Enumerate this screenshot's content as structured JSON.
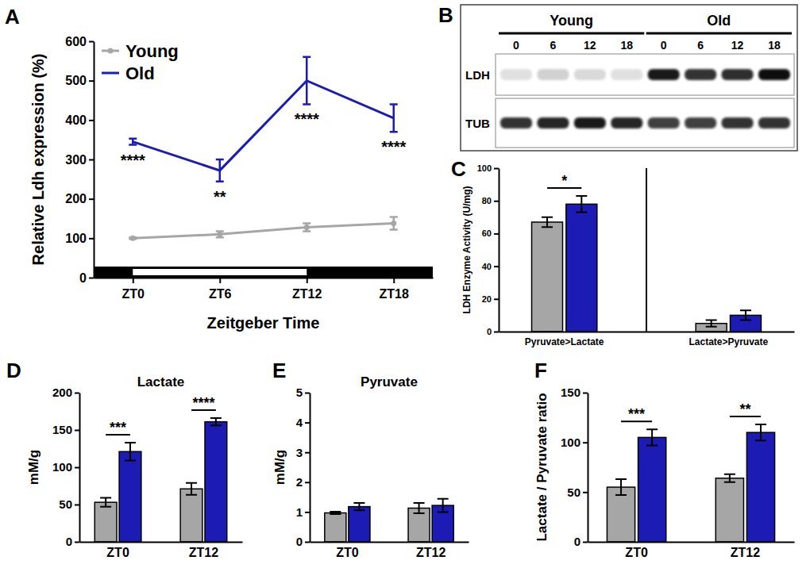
{
  "chart_data": [
    {
      "panel_label": "A",
      "type": "line",
      "x_label": "Zeitgeber Time",
      "y_label": "Relative Ldh expression (%)",
      "categories": [
        "ZT0",
        "ZT6",
        "ZT12",
        "ZT18"
      ],
      "series": [
        {
          "name": "Young",
          "color": "#a6a6a6",
          "marker": "circle",
          "values": [
            100,
            110,
            128,
            138
          ],
          "errors": [
            2,
            8,
            10,
            16
          ]
        },
        {
          "name": "Old",
          "color": "#1c1cb4",
          "values": [
            345,
            272,
            500,
            405
          ],
          "errors": [
            8,
            28,
            60,
            35
          ]
        }
      ],
      "ylim": [
        0,
        600
      ],
      "yticks": [
        0,
        100,
        200,
        300,
        400,
        500,
        600
      ],
      "legend": "upper left",
      "light_phase": [
        "ZT0",
        "ZT12"
      ],
      "annotations": [
        {
          "category": "ZT0",
          "text": "****"
        },
        {
          "category": "ZT6",
          "text": "**"
        },
        {
          "category": "ZT12",
          "text": "****"
        },
        {
          "category": "ZT18",
          "text": "****"
        }
      ]
    },
    {
      "panel_label": "B",
      "type": "blot",
      "groups": [
        {
          "name": "Young",
          "lanes": [
            "0",
            "6",
            "12",
            "18"
          ]
        },
        {
          "name": "Old",
          "lanes": [
            "0",
            "6",
            "12",
            "18"
          ]
        }
      ],
      "rows": [
        {
          "name": "LDH",
          "intensities": [
            0.12,
            0.18,
            0.15,
            0.12,
            0.9,
            0.8,
            0.82,
            0.95
          ]
        },
        {
          "name": "TUB",
          "intensities": [
            0.8,
            0.85,
            0.9,
            0.85,
            0.75,
            0.75,
            0.8,
            0.8
          ]
        }
      ]
    },
    {
      "panel_label": "C",
      "type": "bar",
      "y_label": "LDH Enzyme Activity (U/mg)",
      "categories": [
        "Pyruvate>Lactate",
        "Lactate>Pyruvate"
      ],
      "series": [
        {
          "color": "#a6a6a6",
          "values": [
            67,
            5
          ],
          "errors": [
            3,
            2
          ]
        },
        {
          "color": "#1c1cb4",
          "values": [
            78,
            10
          ],
          "errors": [
            5,
            3
          ]
        }
      ],
      "ylim": [
        0,
        100
      ],
      "yticks": [
        0,
        20,
        40,
        60,
        80,
        100
      ],
      "annotations": [
        {
          "category": "Pyruvate>Lactate",
          "text": "*"
        }
      ]
    },
    {
      "panel_label": "D",
      "type": "bar",
      "title": "Lactate",
      "y_label": "mM/g",
      "categories": [
        "ZT0",
        "ZT12"
      ],
      "series": [
        {
          "color": "#a6a6a6",
          "values": [
            53,
            71
          ],
          "errors": [
            6,
            8
          ]
        },
        {
          "color": "#1c1cb4",
          "values": [
            121,
            161
          ],
          "errors": [
            12,
            5
          ]
        }
      ],
      "ylim": [
        0,
        200
      ],
      "yticks": [
        0,
        50,
        100,
        150,
        200
      ],
      "annotations": [
        {
          "category": "ZT0",
          "text": "***"
        },
        {
          "category": "ZT12",
          "text": "****"
        }
      ]
    },
    {
      "panel_label": "E",
      "type": "bar",
      "title": "Pyruvate",
      "y_label": "mM/g",
      "categories": [
        "ZT0",
        "ZT12"
      ],
      "series": [
        {
          "color": "#a6a6a6",
          "values": [
            0.97,
            1.13
          ],
          "errors": [
            0.04,
            0.17
          ]
        },
        {
          "color": "#1c1cb4",
          "values": [
            1.18,
            1.22
          ],
          "errors": [
            0.12,
            0.22
          ]
        }
      ],
      "ylim": [
        0,
        5
      ],
      "yticks": [
        0,
        1,
        2,
        3,
        4,
        5
      ]
    },
    {
      "panel_label": "F",
      "type": "bar",
      "y_label": "Lactate / Pyruvate ratio",
      "categories": [
        "ZT0",
        "ZT12"
      ],
      "series": [
        {
          "color": "#a6a6a6",
          "values": [
            55,
            64
          ],
          "errors": [
            8,
            4
          ]
        },
        {
          "color": "#1c1cb4",
          "values": [
            105,
            110
          ],
          "errors": [
            8,
            8
          ]
        }
      ],
      "ylim": [
        0,
        150
      ],
      "yticks": [
        0,
        50,
        100,
        150
      ],
      "annotations": [
        {
          "category": "ZT0",
          "text": "***"
        },
        {
          "category": "ZT12",
          "text": "**"
        }
      ]
    }
  ]
}
